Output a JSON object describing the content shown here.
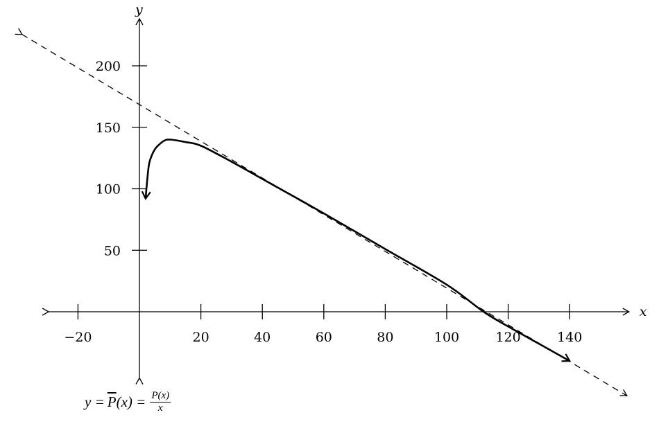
{
  "chart_data": {
    "type": "line",
    "title": "",
    "xlabel": "x",
    "ylabel": "y",
    "xlim": [
      -30,
      160
    ],
    "ylim": [
      -55,
      240
    ],
    "x_ticks": [
      -20,
      20,
      40,
      60,
      80,
      100,
      120,
      140
    ],
    "x_tick_labels": [
      "−20",
      "20",
      "40",
      "60",
      "80",
      "100",
      "120",
      "140"
    ],
    "y_ticks": [
      50,
      100,
      150,
      200
    ],
    "y_tick_labels": [
      "50",
      "100",
      "150",
      "200"
    ],
    "grid": false,
    "series": [
      {
        "style": "solid",
        "x": [
          2,
          3,
          4,
          5,
          6,
          8,
          10,
          15,
          20,
          30,
          40,
          60,
          80,
          100,
          112,
          120,
          130,
          140
        ],
        "y": [
          92,
          118,
          127,
          132,
          135,
          139,
          140,
          138,
          135,
          122,
          108,
          80,
          51,
          22,
          0,
          -12,
          -26,
          -40
        ]
      },
      {
        "style": "dashed",
        "x": [
          -40,
          160
        ],
        "y": [
          230,
          -70
        ]
      }
    ],
    "annotations": [
      {
        "text_lhs": "y = ",
        "text_func": "P",
        "text_arg": "(x) = ",
        "numerator": "P(x)",
        "denominator": "x"
      }
    ]
  }
}
